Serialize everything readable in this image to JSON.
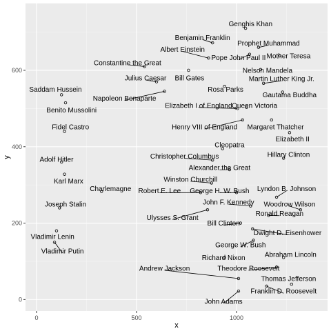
{
  "chart_data": {
    "type": "scatter",
    "title": "",
    "xlabel": "x",
    "ylabel": "y",
    "xlim": [
      -55,
      1455
    ],
    "ylim": [
      -30,
      775
    ],
    "x_ticks": [
      0,
      500,
      1000
    ],
    "y_ticks": [
      0,
      200,
      400,
      600
    ],
    "x_tick_labels": [
      "0",
      "500",
      "1000"
    ],
    "y_tick_labels": [
      "0",
      "200",
      "400",
      "600"
    ],
    "grid": true,
    "legend": "none",
    "points": [
      {
        "name": "Genghis Khan",
        "x": 1045,
        "y": 710,
        "lx": 1070,
        "ly": 722
      },
      {
        "name": "Benjamin Franklin",
        "x": 880,
        "y": 672,
        "lx": 830,
        "ly": 686
      },
      {
        "name": "Prophet Muhammad",
        "x": 1110,
        "y": 660,
        "lx": 1160,
        "ly": 671
      },
      {
        "name": "Albert Einstein",
        "x": 860,
        "y": 632,
        "lx": 730,
        "ly": 655
      },
      {
        "name": "Pope John Paul II",
        "x": 1065,
        "y": 642,
        "lx": 1010,
        "ly": 633
      },
      {
        "name": "Mother Teresa",
        "x": 1215,
        "y": 638,
        "lx": 1260,
        "ly": 638
      },
      {
        "name": "Constantine the Great",
        "x": 540,
        "y": 610,
        "lx": 455,
        "ly": 620
      },
      {
        "name": "Nelson Mandela",
        "x": 1120,
        "y": 602,
        "lx": 1155,
        "ly": 600
      },
      {
        "name": "Julius Caesar",
        "x": 600,
        "y": 570,
        "lx": 545,
        "ly": 580
      },
      {
        "name": "Bill Gates",
        "x": 760,
        "y": 600,
        "lx": 765,
        "ly": 580
      },
      {
        "name": "Martin Luther King Jr.",
        "x": 1135,
        "y": 566,
        "lx": 1225,
        "ly": 578
      },
      {
        "name": "Saddam Hussein",
        "x": 125,
        "y": 536,
        "lx": 95,
        "ly": 550
      },
      {
        "name": "Rosa Parks",
        "x": 940,
        "y": 558,
        "lx": 945,
        "ly": 550
      },
      {
        "name": "Napoleon Bonaparte",
        "x": 640,
        "y": 545,
        "lx": 440,
        "ly": 527
      },
      {
        "name": "Gautama Buddha",
        "x": 1230,
        "y": 543,
        "lx": 1265,
        "ly": 536
      },
      {
        "name": "Benito Mussolini",
        "x": 145,
        "y": 515,
        "lx": 175,
        "ly": 496
      },
      {
        "name": "Elizabeth I of England",
        "x": 1005,
        "y": 500,
        "lx": 810,
        "ly": 508
      },
      {
        "name": "Queen Victoria",
        "x": 1050,
        "y": 503,
        "lx": 1090,
        "ly": 508
      },
      {
        "name": "Fidel Castro",
        "x": 140,
        "y": 440,
        "lx": 170,
        "ly": 452
      },
      {
        "name": "Henry VIII of England",
        "x": 1030,
        "y": 470,
        "lx": 840,
        "ly": 452
      },
      {
        "name": "Margaret Thatcher",
        "x": 1175,
        "y": 470,
        "lx": 1195,
        "ly": 452
      },
      {
        "name": "Elizabeth II",
        "x": 1265,
        "y": 437,
        "lx": 1280,
        "ly": 420
      },
      {
        "name": "Cleopatra",
        "x": 930,
        "y": 395,
        "lx": 965,
        "ly": 405
      },
      {
        "name": "Adolf Hitler",
        "x": 125,
        "y": 360,
        "lx": 100,
        "ly": 367
      },
      {
        "name": "Christopher Columbus",
        "x": 880,
        "y": 365,
        "lx": 740,
        "ly": 375
      },
      {
        "name": "Hillary Clinton",
        "x": 1235,
        "y": 370,
        "lx": 1260,
        "ly": 380
      },
      {
        "name": "Alexander the Great",
        "x": 965,
        "y": 340,
        "lx": 915,
        "ly": 345
      },
      {
        "name": "Karl Marx",
        "x": 140,
        "y": 328,
        "lx": 160,
        "ly": 310
      },
      {
        "name": "Winston Churchill",
        "x": 875,
        "y": 305,
        "lx": 770,
        "ly": 315
      },
      {
        "name": "Charlemagne",
        "x": 325,
        "y": 283,
        "lx": 370,
        "ly": 290
      },
      {
        "name": "Robert E. Lee",
        "x": 820,
        "y": 280,
        "lx": 615,
        "ly": 285
      },
      {
        "name": "George H. W. Bush",
        "x": 1000,
        "y": 280,
        "lx": 915,
        "ly": 285
      },
      {
        "name": "Lyndon B. Johnson",
        "x": 1200,
        "y": 268,
        "lx": 1250,
        "ly": 290
      },
      {
        "name": "John F. Kennedy",
        "x": 1070,
        "y": 245,
        "lx": 960,
        "ly": 255
      },
      {
        "name": "Woodrow Wilson",
        "x": 1320,
        "y": 235,
        "lx": 1265,
        "ly": 250
      },
      {
        "name": "Joseph Stalin",
        "x": 115,
        "y": 240,
        "lx": 145,
        "ly": 250
      },
      {
        "name": "Ronald Reagan",
        "x": 1160,
        "y": 220,
        "lx": 1215,
        "ly": 225
      },
      {
        "name": "Ulysses S. Grant",
        "x": 855,
        "y": 235,
        "lx": 680,
        "ly": 215
      },
      {
        "name": "Bill Clinton",
        "x": 1020,
        "y": 200,
        "lx": 935,
        "ly": 200
      },
      {
        "name": "Dwight D. Eisenhower",
        "x": 1080,
        "y": 185,
        "lx": 1255,
        "ly": 175
      },
      {
        "name": "Vladimir Lenin",
        "x": 100,
        "y": 180,
        "lx": 80,
        "ly": 165
      },
      {
        "name": "George W. Bush",
        "x": 1085,
        "y": 155,
        "lx": 1020,
        "ly": 143
      },
      {
        "name": "Vladimir Putin",
        "x": 90,
        "y": 150,
        "lx": 130,
        "ly": 127
      },
      {
        "name": "Abraham Lincoln",
        "x": 1235,
        "y": 110,
        "lx": 1270,
        "ly": 118
      },
      {
        "name": "Richard Nixon",
        "x": 940,
        "y": 110,
        "lx": 935,
        "ly": 110
      },
      {
        "name": "Andrew Jackson",
        "x": 1010,
        "y": 55,
        "lx": 640,
        "ly": 82
      },
      {
        "name": "Theodore Roosevelt",
        "x": 1200,
        "y": 85,
        "lx": 1060,
        "ly": 82
      },
      {
        "name": "Thomas Jefferson",
        "x": 1275,
        "y": 40,
        "lx": 1260,
        "ly": 55
      },
      {
        "name": "Franklin D. Roosevelt",
        "x": 1150,
        "y": 35,
        "lx": 1235,
        "ly": 22
      },
      {
        "name": "John Adams",
        "x": 1010,
        "y": 22,
        "lx": 935,
        "ly": -5
      }
    ]
  }
}
